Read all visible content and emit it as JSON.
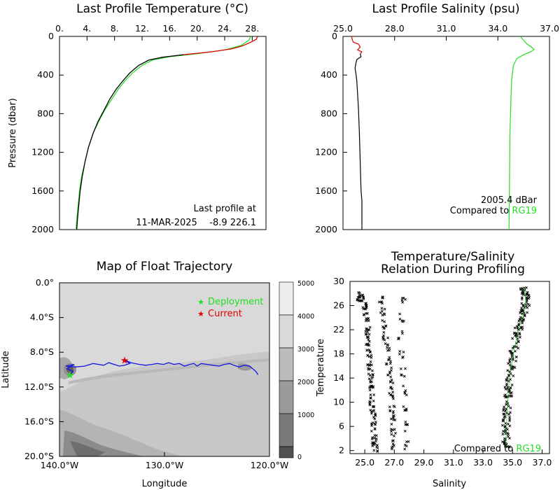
{
  "colors": {
    "float": "#000000",
    "float_shallow": "#e00000",
    "reference": "#22dd22",
    "trajectory": "#1515e0",
    "deployment": "#22dd22",
    "current": "#e00000"
  },
  "chart_data": [
    {
      "id": "temp",
      "type": "line",
      "title": "Last Profile Temperature (°C)",
      "xlabel": "",
      "ylabel": "Pressure (dbar)",
      "xlim": [
        0,
        30
      ],
      "ylim": [
        2000,
        0
      ],
      "xtick_labels": [
        "0.",
        "4.",
        "8.",
        "12.",
        "16.",
        "20.",
        "24.",
        "28."
      ],
      "xtick_values": [
        0,
        4,
        8,
        12,
        16,
        20,
        24,
        28
      ],
      "ytick_labels": [
        "0",
        "400",
        "800",
        "1200",
        "1600",
        "2000"
      ],
      "ytick_values": [
        0,
        400,
        800,
        1200,
        1600,
        2000
      ],
      "annotation_line1": "Last profile at",
      "annotation_date": "11-MAR-2025",
      "annotation_position": "-8.9 226.1",
      "series": [
        {
          "points": [
            [
              28.8,
              0
            ],
            [
              28.6,
              30
            ],
            [
              27.8,
              60
            ],
            [
              26.5,
              100
            ],
            [
              25,
              130
            ],
            [
              22,
              160
            ],
            [
              18,
              190
            ],
            [
              15,
              215
            ],
            [
              13,
              245
            ],
            [
              11.5,
              300
            ],
            [
              10.2,
              380
            ],
            [
              9.2,
              460
            ],
            [
              8.2,
              550
            ],
            [
              7.3,
              650
            ],
            [
              6.5,
              760
            ],
            [
              5.6,
              880
            ],
            [
              4.9,
              1000
            ],
            [
              4.2,
              1150
            ],
            [
              3.7,
              1300
            ],
            [
              3.3,
              1450
            ],
            [
              3.0,
              1600
            ],
            [
              2.8,
              1750
            ],
            [
              2.6,
              1900
            ],
            [
              2.5,
              2000
            ]
          ]
        },
        {
          "points": [
            [
              27.8,
              0
            ],
            [
              27.5,
              40
            ],
            [
              26.5,
              90
            ],
            [
              24,
              140
            ],
            [
              20,
              180
            ],
            [
              16,
              210
            ],
            [
              13.5,
              245
            ],
            [
              12,
              300
            ],
            [
              10.6,
              380
            ],
            [
              9.5,
              460
            ],
            [
              8.5,
              550
            ],
            [
              7.6,
              650
            ],
            [
              6.6,
              760
            ],
            [
              5.7,
              880
            ],
            [
              4.9,
              1000
            ],
            [
              4.2,
              1150
            ],
            [
              3.7,
              1300
            ],
            [
              3.2,
              1450
            ],
            [
              2.9,
              1600
            ],
            [
              2.7,
              1750
            ],
            [
              2.5,
              1900
            ],
            [
              2.4,
              2000
            ]
          ]
        }
      ]
    },
    {
      "id": "sal",
      "type": "line",
      "title": "Last Profile Salinity (psu)",
      "xlabel": "",
      "ylabel": "",
      "xlim": [
        25,
        37
      ],
      "ylim": [
        2000,
        0
      ],
      "xtick_labels": [
        "25.0",
        "28.0",
        "31.0",
        "34.0",
        "37.0"
      ],
      "xtick_values": [
        25,
        28,
        31,
        34,
        37
      ],
      "ytick_labels": [
        "0",
        "400",
        "800",
        "1200",
        "1600",
        "2000"
      ],
      "ytick_values": [
        0,
        400,
        800,
        1200,
        1600,
        2000
      ],
      "annotation_pressure": "2005.4  dBar",
      "annotation_compared": "Compared to ",
      "annotation_reference": "RG19",
      "series": [
        {
          "points": [
            [
              25.5,
              0
            ],
            [
              25.55,
              40
            ],
            [
              25.6,
              60
            ],
            [
              25.9,
              80
            ],
            [
              26.0,
              110
            ],
            [
              25.85,
              140
            ],
            [
              26.1,
              160
            ],
            [
              26.0,
              180
            ],
            [
              26.05,
              210
            ],
            [
              25.8,
              240
            ],
            [
              25.75,
              280
            ],
            [
              25.7,
              330
            ],
            [
              25.75,
              380
            ],
            [
              25.8,
              460
            ],
            [
              25.85,
              600
            ],
            [
              25.9,
              750
            ],
            [
              25.95,
              1000
            ],
            [
              26.0,
              1300
            ],
            [
              26.05,
              1600
            ],
            [
              26.1,
              1700
            ],
            [
              26.1,
              2000
            ]
          ]
        },
        {
          "points": [
            [
              35.3,
              0
            ],
            [
              35.5,
              40
            ],
            [
              35.7,
              80
            ],
            [
              35.95,
              110
            ],
            [
              36.1,
              135
            ],
            [
              35.9,
              160
            ],
            [
              35.5,
              190
            ],
            [
              35.1,
              230
            ],
            [
              34.9,
              300
            ],
            [
              34.8,
              450
            ],
            [
              34.75,
              700
            ],
            [
              34.7,
              1000
            ],
            [
              34.68,
              1400
            ],
            [
              34.65,
              2000
            ]
          ]
        }
      ]
    },
    {
      "id": "map",
      "type": "map",
      "title": "Map of Float Trajectory",
      "xlabel": "Longitude",
      "ylabel": "Latitude",
      "xlim": [
        -140,
        -120
      ],
      "ylim": [
        -20,
        0
      ],
      "xtick_labels": [
        "140.0°W",
        "130.0°W",
        "120.0°W"
      ],
      "xtick_values": [
        -140,
        -130,
        -120
      ],
      "ytick_labels": [
        "0.0°",
        "4.0°S",
        "8.0°S",
        "12.0°S",
        "16.0°S",
        "20.0°S"
      ],
      "ytick_values": [
        0,
        -4,
        -8,
        -12,
        -16,
        -20
      ],
      "colorbar_labels": [
        "5000",
        "4000",
        "3000",
        "2000",
        "1000",
        "0"
      ],
      "legend_deployment": "Deployment",
      "legend_current": "Current",
      "deployment": [
        -139.0,
        -10.6
      ],
      "current": [
        -133.8,
        -8.9
      ],
      "trajectory": [
        [
          -139.0,
          -10.6
        ],
        [
          -138.7,
          -10.2
        ],
        [
          -139.3,
          -9.9
        ],
        [
          -138.6,
          -9.4
        ],
        [
          -139.4,
          -9.6
        ],
        [
          -138.5,
          -9.7
        ],
        [
          -137.6,
          -9.6
        ],
        [
          -136.8,
          -9.3
        ],
        [
          -135.8,
          -9.5
        ],
        [
          -135.3,
          -9.2
        ],
        [
          -134.8,
          -9.4
        ],
        [
          -134.3,
          -9.6
        ],
        [
          -133.8,
          -9.5
        ],
        [
          -133.3,
          -9.3
        ],
        [
          -133.8,
          -8.9
        ],
        [
          -133.2,
          -9.2
        ],
        [
          -132.4,
          -9.4
        ],
        [
          -131.8,
          -9.5
        ],
        [
          -131.2,
          -9.4
        ],
        [
          -130.7,
          -9.3
        ],
        [
          -130.1,
          -9.4
        ],
        [
          -129.6,
          -9.2
        ],
        [
          -129.1,
          -9.4
        ],
        [
          -128.6,
          -9.3
        ],
        [
          -128.1,
          -9.6
        ],
        [
          -127.6,
          -9.4
        ],
        [
          -127.2,
          -9.3
        ],
        [
          -126.9,
          -9.6
        ],
        [
          -126.5,
          -9.3
        ],
        [
          -125.9,
          -9.4
        ],
        [
          -125.4,
          -9.5
        ],
        [
          -124.8,
          -9.6
        ],
        [
          -124.3,
          -9.4
        ],
        [
          -123.8,
          -9.3
        ],
        [
          -123.4,
          -9.5
        ],
        [
          -122.9,
          -9.7
        ],
        [
          -122.4,
          -9.5
        ],
        [
          -121.9,
          -9.6
        ],
        [
          -121.6,
          -9.9
        ],
        [
          -121.3,
          -10.2
        ],
        [
          -121.1,
          -10.6
        ]
      ]
    },
    {
      "id": "ts",
      "type": "scatter",
      "title_line1": "Temperature/Salinity",
      "title_line2": "Relation During Profiling",
      "xlabel": "Salinity",
      "ylabel": "Temperature",
      "xlim": [
        24,
        37.5
      ],
      "ylim": [
        1.5,
        30
      ],
      "xtick_labels": [
        "25.0",
        "27.0",
        "29.0",
        "31.0",
        "33.0",
        "35.0",
        "37.0"
      ],
      "xtick_values": [
        25,
        27,
        29,
        31,
        33,
        35,
        37
      ],
      "ytick_labels": [
        "2",
        "6",
        "10",
        "14",
        "18",
        "22",
        "26",
        "30"
      ],
      "ytick_values": [
        2,
        6,
        10,
        14,
        18,
        22,
        26,
        30
      ],
      "annotation_compared": "Compared to ",
      "annotation_reference": "RG19",
      "curve": [
        [
          34.55,
          2.4
        ],
        [
          34.56,
          4
        ],
        [
          34.58,
          6
        ],
        [
          34.62,
          8
        ],
        [
          34.67,
          10
        ],
        [
          34.72,
          12
        ],
        [
          34.8,
          14
        ],
        [
          34.92,
          16
        ],
        [
          35.06,
          18
        ],
        [
          35.22,
          20
        ],
        [
          35.4,
          22
        ],
        [
          35.6,
          23.5
        ],
        [
          35.78,
          25
        ],
        [
          35.9,
          26.5
        ],
        [
          35.85,
          28
        ],
        [
          35.75,
          29
        ]
      ],
      "points_left": [
        [
          24.6,
          27.5
        ],
        [
          24.8,
          27.0
        ],
        [
          25.0,
          26.0
        ],
        [
          25.1,
          24.0
        ],
        [
          25.2,
          22.0
        ],
        [
          25.25,
          20.0
        ],
        [
          25.3,
          18.0
        ],
        [
          25.35,
          16.0
        ],
        [
          25.4,
          14.0
        ],
        [
          25.45,
          12.0
        ],
        [
          25.5,
          10.0
        ],
        [
          25.55,
          8.0
        ],
        [
          25.6,
          6.0
        ],
        [
          25.65,
          4.0
        ],
        [
          25.7,
          2.5
        ]
      ],
      "points_mid": [
        [
          26.1,
          27.0
        ],
        [
          26.2,
          25.0
        ],
        [
          26.3,
          23.0
        ],
        [
          26.4,
          21.0
        ],
        [
          26.5,
          19.0
        ],
        [
          26.6,
          17.0
        ],
        [
          26.7,
          15.0
        ],
        [
          26.75,
          13.0
        ],
        [
          26.8,
          11.0
        ],
        [
          26.85,
          9.0
        ],
        [
          26.9,
          7.0
        ],
        [
          26.95,
          5.0
        ],
        [
          27.0,
          3.0
        ]
      ],
      "points_right": [
        [
          27.6,
          27.0
        ],
        [
          27.5,
          24.0
        ],
        [
          27.4,
          21.0
        ],
        [
          27.5,
          18.0
        ],
        [
          27.6,
          15.0
        ],
        [
          27.7,
          12.0
        ],
        [
          27.75,
          9.0
        ],
        [
          27.8,
          6.0
        ],
        [
          27.85,
          3.0
        ]
      ]
    }
  ]
}
